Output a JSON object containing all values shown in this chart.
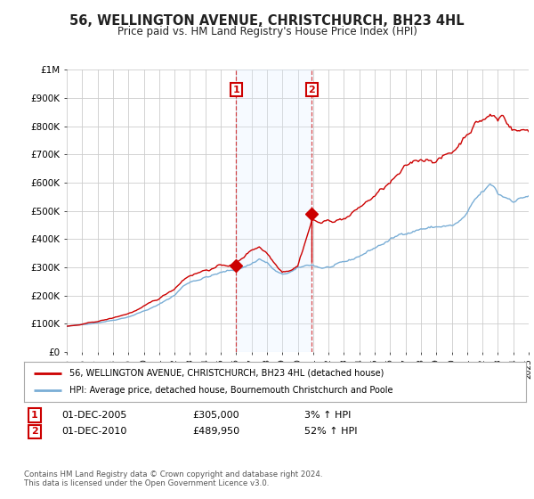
{
  "title": "56, WELLINGTON AVENUE, CHRISTCHURCH, BH23 4HL",
  "subtitle": "Price paid vs. HM Land Registry's House Price Index (HPI)",
  "background_color": "#ffffff",
  "grid_color": "#cccccc",
  "sale1_date": 2006.0,
  "sale1_price": 305000,
  "sale2_date": 2010.917,
  "sale2_price": 489950,
  "hpi_color": "#7aaed6",
  "price_color": "#cc0000",
  "vline_color": "#cc0000",
  "shade_color": "#ddeeff",
  "legend_label_price": "56, WELLINGTON AVENUE, CHRISTCHURCH, BH23 4HL (detached house)",
  "legend_label_hpi": "HPI: Average price, detached house, Bournemouth Christchurch and Poole",
  "footer": "Contains HM Land Registry data © Crown copyright and database right 2024.\nThis data is licensed under the Open Government Licence v3.0.",
  "xlim_start": 1995.0,
  "xlim_end": 2025.0,
  "ylim": [
    0,
    1000000
  ],
  "yticks": [
    0,
    100000,
    200000,
    300000,
    400000,
    500000,
    600000,
    700000,
    800000,
    900000,
    1000000
  ],
  "ytick_labels": [
    "£0",
    "£100K",
    "£200K",
    "£300K",
    "£400K",
    "£500K",
    "£600K",
    "£700K",
    "£800K",
    "£900K",
    "£1M"
  ]
}
